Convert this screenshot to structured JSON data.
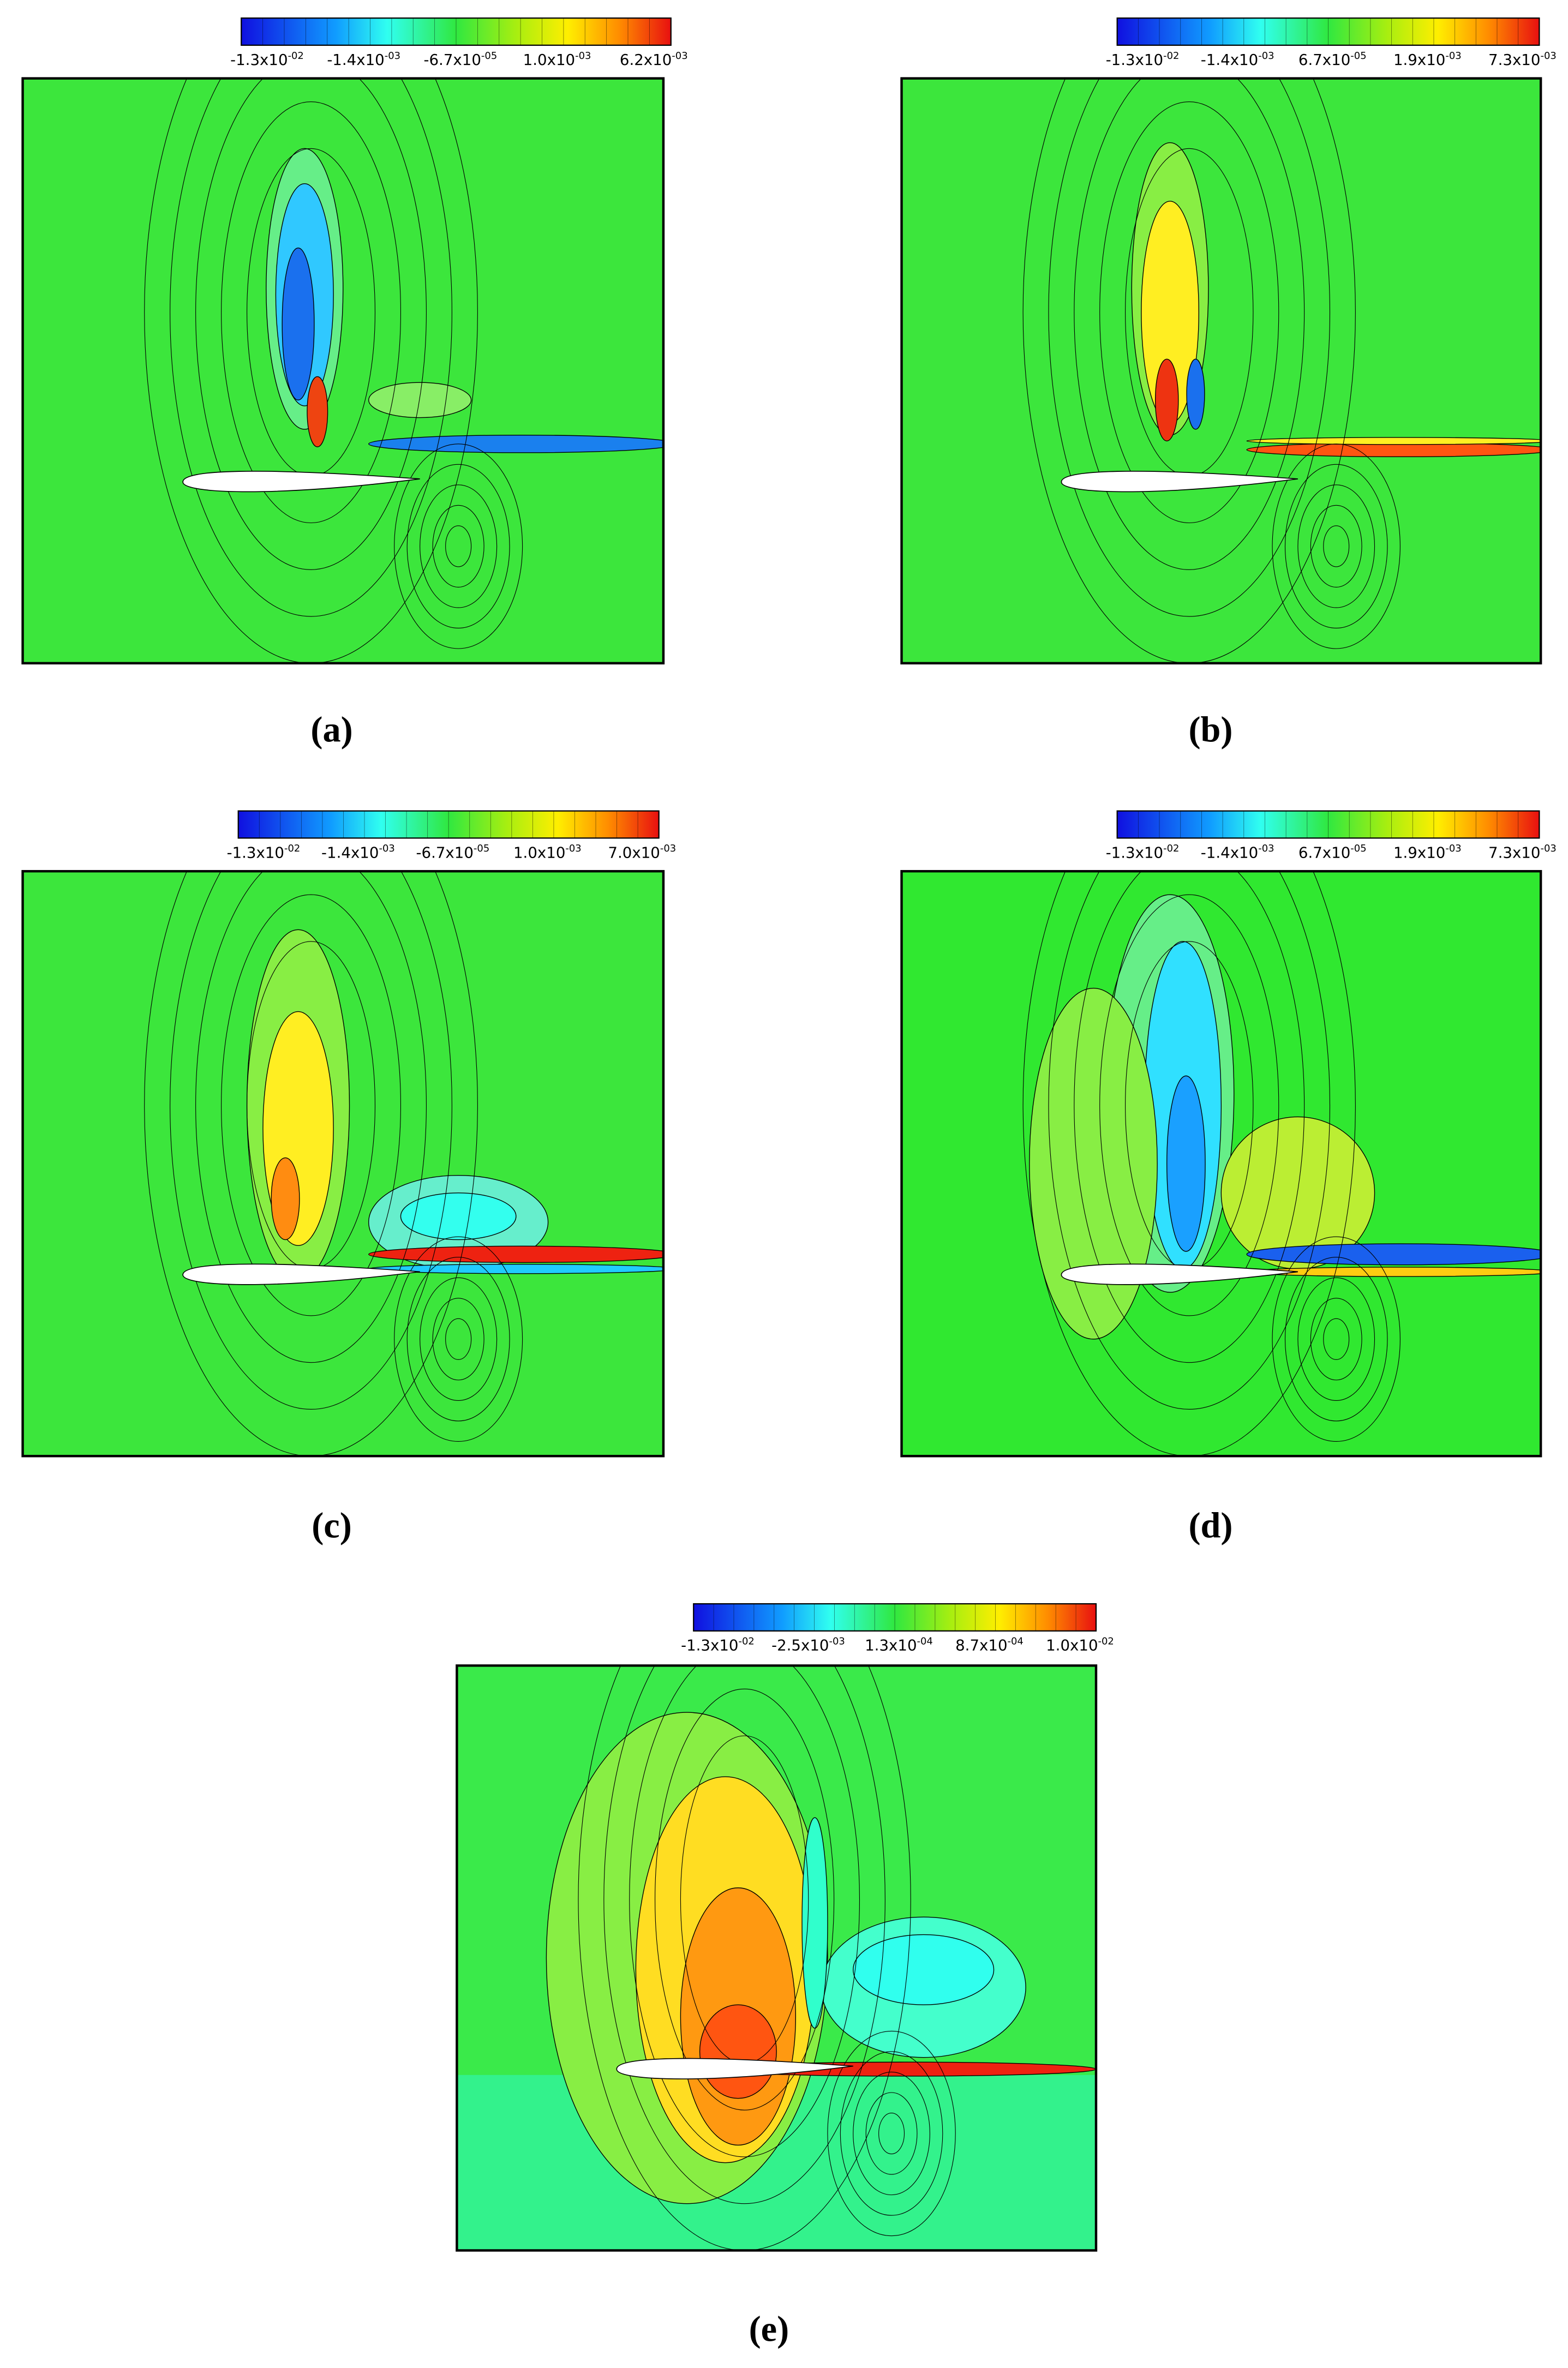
{
  "panels": [
    {
      "caption": "(a)",
      "colorbar_labels": [
        {
          "base": "-1.3x10",
          "exp": "-02"
        },
        {
          "base": "-1.4x10",
          "exp": "-03"
        },
        {
          "base": "-6.7x10",
          "exp": "-05"
        },
        {
          "base": "1.0x10",
          "exp": "-03"
        },
        {
          "base": "6.2x10",
          "exp": "-03"
        }
      ]
    },
    {
      "caption": "(b)",
      "colorbar_labels": [
        {
          "base": "-1.3x10",
          "exp": "-02"
        },
        {
          "base": "-1.4x10",
          "exp": "-03"
        },
        {
          "base": "6.7x10",
          "exp": "-05"
        },
        {
          "base": "1.9x10",
          "exp": "-03"
        },
        {
          "base": "7.3x10",
          "exp": "-03"
        }
      ]
    },
    {
      "caption": "(c)",
      "colorbar_labels": [
        {
          "base": "-1.3x10",
          "exp": "-02"
        },
        {
          "base": "-1.4x10",
          "exp": "-03"
        },
        {
          "base": "-6.7x10",
          "exp": "-05"
        },
        {
          "base": "1.0x10",
          "exp": "-03"
        },
        {
          "base": "7.0x10",
          "exp": "-03"
        }
      ]
    },
    {
      "caption": "(d)",
      "colorbar_labels": [
        {
          "base": "-1.3x10",
          "exp": "-02"
        },
        {
          "base": "-1.4x10",
          "exp": "-03"
        },
        {
          "base": "6.7x10",
          "exp": "-05"
        },
        {
          "base": "1.9x10",
          "exp": "-03"
        },
        {
          "base": "7.3x10",
          "exp": "-03"
        }
      ]
    },
    {
      "caption": "(e)",
      "colorbar_labels": [
        {
          "base": "-1.3x10",
          "exp": "-02"
        },
        {
          "base": "-2.5x10",
          "exp": "-03"
        },
        {
          "base": "1.3x10",
          "exp": "-04"
        },
        {
          "base": "8.7x10",
          "exp": "-04"
        },
        {
          "base": "1.0x10",
          "exp": "-02"
        }
      ]
    }
  ]
}
